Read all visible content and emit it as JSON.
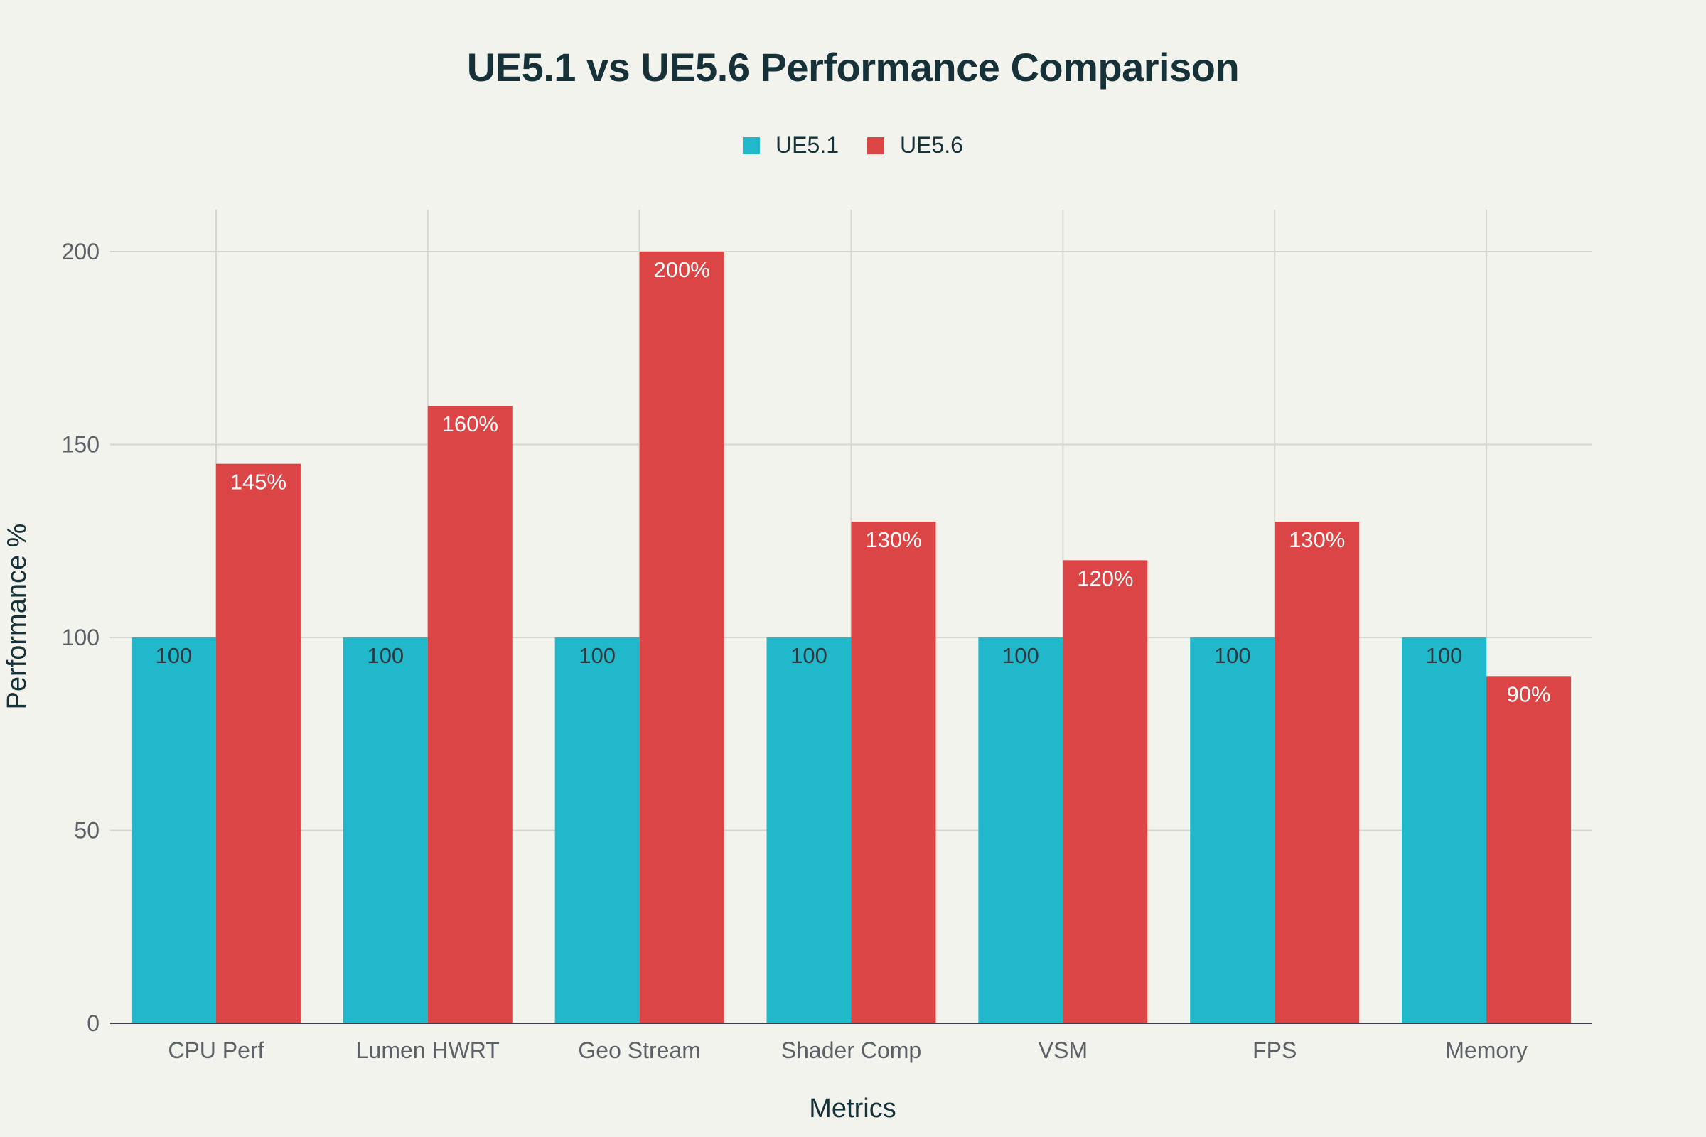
{
  "chart_data": {
    "type": "bar",
    "title": "UE5.1 vs UE5.6 Performance Comparison",
    "xlabel": "Metrics",
    "ylabel": "Performance %",
    "categories": [
      "CPU Perf",
      "Lumen HWRT",
      "Geo Stream",
      "Shader Comp",
      "VSM",
      "FPS",
      "Memory"
    ],
    "series": [
      {
        "name": "UE5.1",
        "color": "#21b8cc",
        "values": [
          100,
          100,
          100,
          100,
          100,
          100,
          100
        ],
        "labels": [
          "100",
          "100",
          "100",
          "100",
          "100",
          "100",
          "100"
        ],
        "label_color": "#2b3a40"
      },
      {
        "name": "UE5.6",
        "color": "#db4545",
        "values": [
          145,
          160,
          200,
          130,
          120,
          130,
          90
        ],
        "labels": [
          "145%",
          "160%",
          "200%",
          "130%",
          "120%",
          "130%",
          "90%"
        ],
        "label_color": "#ffffff"
      }
    ],
    "ylim": [
      0,
      210
    ],
    "yticks": [
      0,
      50,
      100,
      150,
      200
    ],
    "grid": true,
    "legend_position": "top-center"
  }
}
